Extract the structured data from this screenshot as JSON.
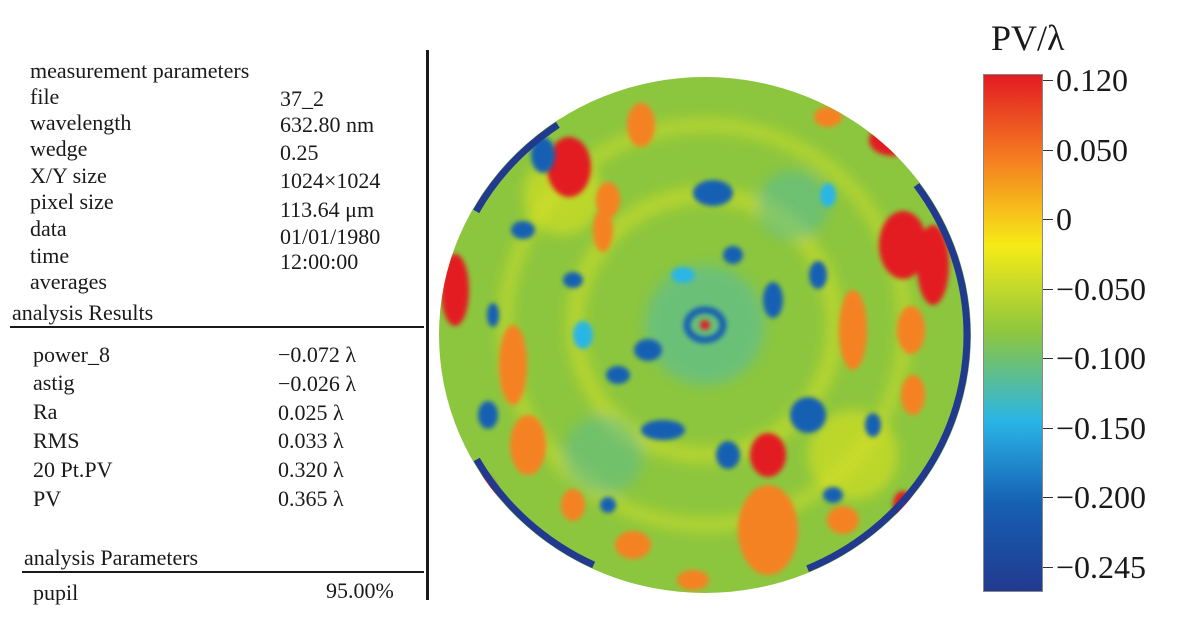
{
  "measurement": {
    "heading": "measurement parameters",
    "rows": [
      {
        "label": "file",
        "value": "37_2"
      },
      {
        "label": "wavelength",
        "value": "632.80 nm"
      },
      {
        "label": "wedge",
        "value": "0.25"
      },
      {
        "label": "X/Y size",
        "value": "1024×1024"
      },
      {
        "label": "pixel size",
        "value": "113.64 μm"
      },
      {
        "label": "data",
        "value": "01/01/1980"
      },
      {
        "label": "time",
        "value": "12:00:00"
      },
      {
        "label": "averages",
        "value": ""
      }
    ]
  },
  "results": {
    "heading": "analysis Results",
    "rows": [
      {
        "label": "power_8",
        "value": "−0.072 λ"
      },
      {
        "label": "astig",
        "value": "−0.026 λ"
      },
      {
        "label": "Ra",
        "value": "0.025 λ"
      },
      {
        "label": "RMS",
        "value": "0.033 λ"
      },
      {
        "label": "20 Pt.PV",
        "value": "0.320 λ"
      },
      {
        "label": "PV",
        "value": "0.365 λ"
      }
    ]
  },
  "parameters": {
    "heading": "analysis Parameters",
    "rows": [
      {
        "label": "pupil",
        "value": "95.00%"
      }
    ]
  },
  "colorbar": {
    "title": "PV/λ",
    "ticks": [
      "0.120",
      "0.050",
      "0",
      "−0.050",
      "−0.100",
      "−0.150",
      "−0.200",
      "−0.245"
    ],
    "colors": [
      "#e31b23",
      "#f58220",
      "#f6eb16",
      "#8cc63f",
      "#2ab5e6",
      "#1660b3",
      "#213a8f"
    ]
  }
}
